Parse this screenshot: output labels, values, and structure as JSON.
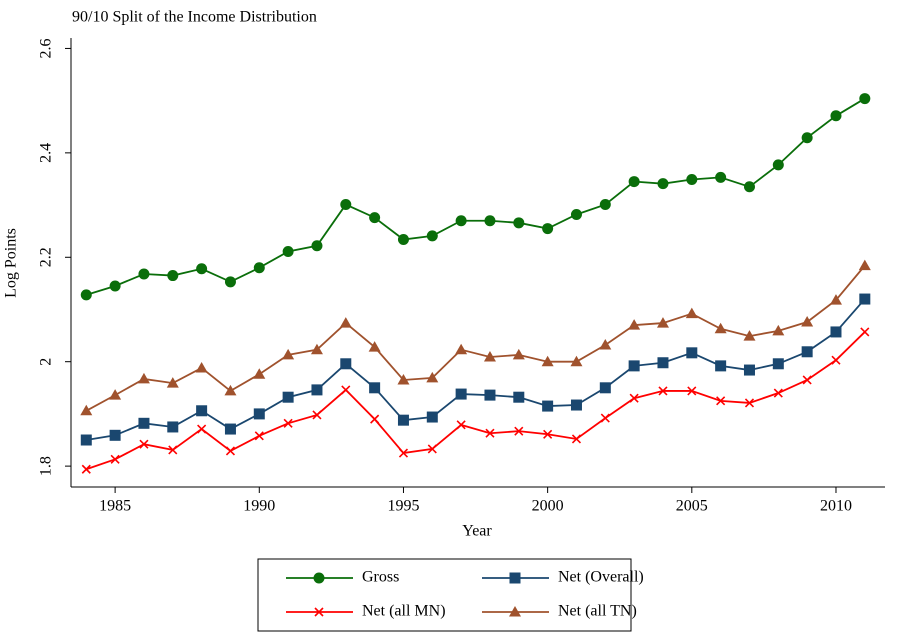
{
  "chart_data": {
    "type": "line",
    "title": "90/10 Split of the Income Distribution",
    "x_label": "Year",
    "y_label": "Log Points",
    "x": [
      1984,
      1985,
      1986,
      1987,
      1988,
      1989,
      1990,
      1991,
      1992,
      1993,
      1994,
      1995,
      1996,
      1997,
      1998,
      1999,
      2000,
      2001,
      2002,
      2003,
      2004,
      2005,
      2006,
      2007,
      2008,
      2009,
      2010,
      2011
    ],
    "series": [
      {
        "name": "Gross",
        "color": "#0a6e0a",
        "marker": "circle",
        "values": [
          2.128,
          2.145,
          2.168,
          2.165,
          2.178,
          2.153,
          2.18,
          2.211,
          2.222,
          2.301,
          2.276,
          2.234,
          2.241,
          2.27,
          2.27,
          2.266,
          2.255,
          2.282,
          2.301,
          2.345,
          2.341,
          2.349,
          2.353,
          2.335,
          2.377,
          2.429,
          2.471,
          2.504
        ]
      },
      {
        "name": "Net (Overall)",
        "color": "#1a476f",
        "marker": "square",
        "values": [
          1.85,
          1.859,
          1.882,
          1.875,
          1.906,
          1.871,
          1.9,
          1.932,
          1.946,
          1.996,
          1.95,
          1.888,
          1.894,
          1.938,
          1.936,
          1.932,
          1.915,
          1.917,
          1.95,
          1.992,
          1.998,
          2.017,
          1.992,
          1.984,
          1.996,
          2.019,
          2.057,
          2.12
        ]
      },
      {
        "name": "Net (all MN)",
        "color": "#ff0000",
        "marker": "x",
        "values": [
          1.794,
          1.813,
          1.842,
          1.831,
          1.871,
          1.829,
          1.858,
          1.882,
          1.898,
          1.946,
          1.89,
          1.825,
          1.833,
          1.879,
          1.863,
          1.867,
          1.861,
          1.852,
          1.892,
          1.93,
          1.944,
          1.944,
          1.925,
          1.921,
          1.94,
          1.965,
          2.003,
          2.057
        ]
      },
      {
        "name": "Net (all TN)",
        "color": "#a0522d",
        "marker": "triangle",
        "values": [
          1.906,
          1.936,
          1.967,
          1.959,
          1.988,
          1.944,
          1.976,
          2.013,
          2.023,
          2.074,
          2.028,
          1.965,
          1.969,
          2.023,
          2.009,
          2.013,
          2.0,
          2.0,
          2.032,
          2.07,
          2.074,
          2.092,
          2.063,
          2.049,
          2.059,
          2.076,
          2.118,
          2.184
        ]
      }
    ],
    "xlim": [
      1983.47,
      2011.7
    ],
    "ylim": [
      1.76,
      2.62
    ],
    "xticks": [
      1985,
      1990,
      1995,
      2000,
      2005,
      2010
    ],
    "yticks": [
      1.8,
      2,
      2.2,
      2.4,
      2.6
    ],
    "grid": false,
    "legend": "bottom"
  }
}
